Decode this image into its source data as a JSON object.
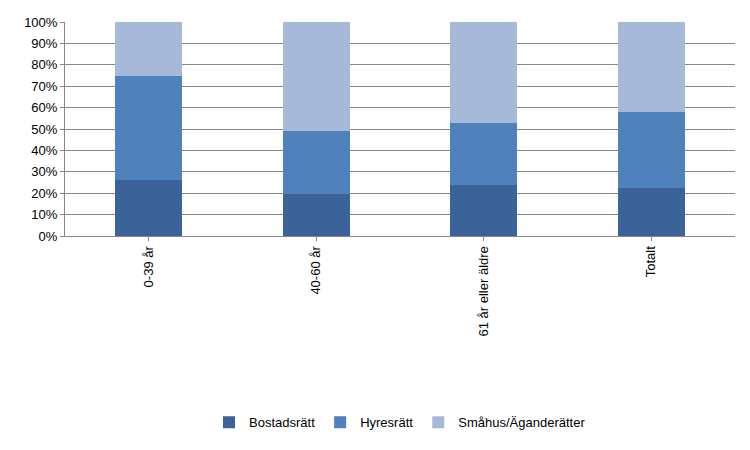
{
  "chart_data": {
    "type": "bar",
    "stacked": true,
    "grid": true,
    "legend": "bottom",
    "categories": [
      "0-39 år",
      "40-60 år",
      "61 år eller äldre",
      "Totalt"
    ],
    "series": [
      {
        "name": "Bostadsrätt",
        "color": "#3c6399",
        "values": [
          26,
          19.5,
          24,
          22.5
        ]
      },
      {
        "name": "Hyresrätt",
        "color": "#4f81bd",
        "values": [
          49,
          29.5,
          29,
          35.5
        ]
      },
      {
        "name": "Småhus/Äganderätter",
        "color": "#a7b9d9",
        "values": [
          25,
          51,
          47,
          42
        ]
      }
    ],
    "ylim": [
      0,
      100
    ],
    "yticks": [
      {
        "value": 0,
        "label": "0%"
      },
      {
        "value": 10,
        "label": "10%"
      },
      {
        "value": 20,
        "label": "20%"
      },
      {
        "value": 30,
        "label": "30%"
      },
      {
        "value": 40,
        "label": "40%"
      },
      {
        "value": 50,
        "label": "50%"
      },
      {
        "value": 60,
        "label": "60%"
      },
      {
        "value": 70,
        "label": "70%"
      },
      {
        "value": 80,
        "label": "80%"
      },
      {
        "value": 90,
        "label": "90%"
      },
      {
        "value": 100,
        "label": "100%"
      }
    ]
  }
}
